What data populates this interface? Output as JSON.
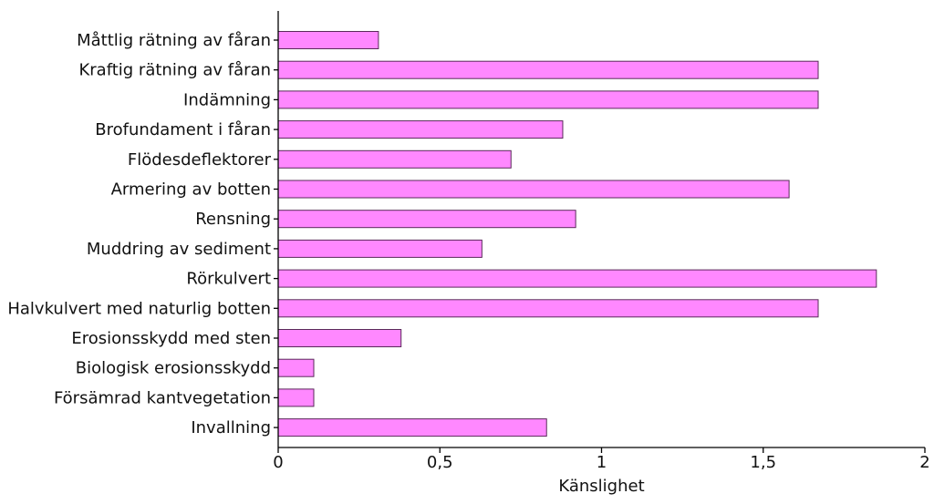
{
  "chart_data": {
    "type": "bar",
    "orientation": "horizontal",
    "title": "",
    "xlabel": "Känslighet",
    "ylabel": "",
    "xlim": [
      0,
      2
    ],
    "xticks": [
      0,
      0.5,
      1,
      1.5,
      2
    ],
    "xtick_labels": [
      "0",
      "0,5",
      "1",
      "1,5",
      "2"
    ],
    "grid": false,
    "legend": "none",
    "categories": [
      "Måttlig rätning av fåran",
      "Kraftig rätning av fåran",
      "Indämning",
      "Brofundament i fåran",
      "Flödesdeflektorer",
      "Armering av botten",
      "Rensning",
      "Muddring av sediment",
      "Rörkulvert",
      "Halvkulvert med naturlig botten",
      "Erosionsskydd med sten",
      "Biologisk erosionsskydd",
      "Försämrad kantvegetation",
      "Invallning"
    ],
    "values": [
      0.31,
      1.67,
      1.67,
      0.88,
      0.72,
      1.58,
      0.92,
      0.63,
      1.85,
      1.67,
      0.38,
      0.11,
      0.11,
      0.83
    ],
    "bar_color": "#ff88ff",
    "bar_edge_color": "#5a2a5a"
  }
}
